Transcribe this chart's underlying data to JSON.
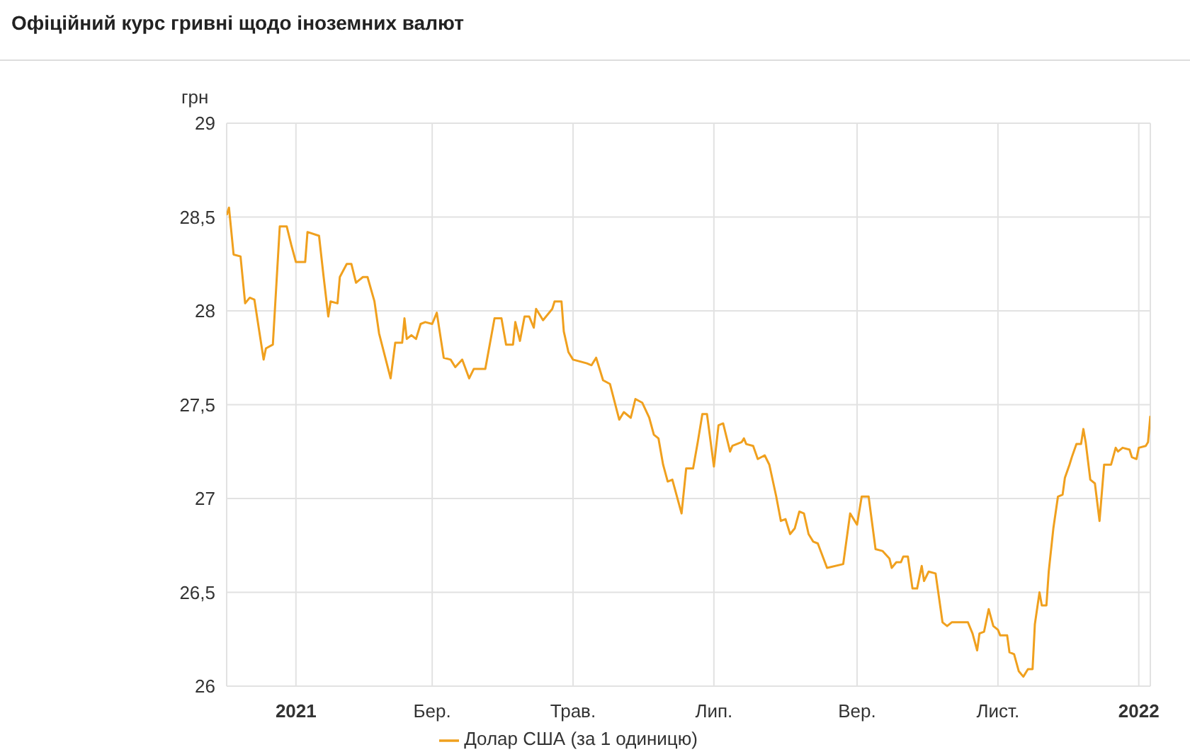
{
  "chart_data": {
    "type": "line",
    "title": "Офіційний курс гривні щодо іноземних валют",
    "ylabel": "грн",
    "x": [
      "2020-12-02",
      "2020-12-03",
      "2020-12-05",
      "2020-12-08",
      "2020-12-10",
      "2020-12-12",
      "2020-12-14",
      "2020-12-18",
      "2020-12-19",
      "2020-12-22",
      "2020-12-25",
      "2020-12-28",
      "2020-12-30",
      "2021-01-01",
      "2021-01-05",
      "2021-01-06",
      "2021-01-11",
      "2021-01-13",
      "2021-01-15",
      "2021-01-16",
      "2021-01-19",
      "2021-01-20",
      "2021-01-23",
      "2021-01-25",
      "2021-01-27",
      "2021-01-30",
      "2021-02-01",
      "2021-02-04",
      "2021-02-06",
      "2021-02-11",
      "2021-02-13",
      "2021-02-16",
      "2021-02-17",
      "2021-02-18",
      "2021-02-20",
      "2021-02-22",
      "2021-02-24",
      "2021-02-26",
      "2021-03-01",
      "2021-03-03",
      "2021-03-06",
      "2021-03-09",
      "2021-03-11",
      "2021-03-14",
      "2021-03-17",
      "2021-03-19",
      "2021-03-24",
      "2021-03-28",
      "2021-03-31",
      "2021-04-02",
      "2021-04-05",
      "2021-04-06",
      "2021-04-08",
      "2021-04-10",
      "2021-04-12",
      "2021-04-14",
      "2021-04-15",
      "2021-04-18",
      "2021-04-22",
      "2021-04-23",
      "2021-04-26",
      "2021-04-27",
      "2021-04-29",
      "2021-05-01",
      "2021-05-07",
      "2021-05-09",
      "2021-05-11",
      "2021-05-14",
      "2021-05-17",
      "2021-05-21",
      "2021-05-23",
      "2021-05-26",
      "2021-05-28",
      "2021-05-31",
      "2021-06-03",
      "2021-06-05",
      "2021-06-07",
      "2021-06-09",
      "2021-06-11",
      "2021-06-13",
      "2021-06-17",
      "2021-06-19",
      "2021-06-22",
      "2021-06-24",
      "2021-06-26",
      "2021-06-28",
      "2021-07-01",
      "2021-07-03",
      "2021-07-05",
      "2021-07-08",
      "2021-07-09",
      "2021-07-13",
      "2021-07-14",
      "2021-07-15",
      "2021-07-18",
      "2021-07-20",
      "2021-07-23",
      "2021-07-25",
      "2021-07-28",
      "2021-07-30",
      "2021-08-01",
      "2021-08-03",
      "2021-08-05",
      "2021-08-07",
      "2021-08-09",
      "2021-08-11",
      "2021-08-13",
      "2021-08-15",
      "2021-08-19",
      "2021-08-26",
      "2021-08-29",
      "2021-09-01",
      "2021-09-03",
      "2021-09-06",
      "2021-09-09",
      "2021-09-12",
      "2021-09-15",
      "2021-09-16",
      "2021-09-18",
      "2021-09-20",
      "2021-09-21",
      "2021-09-23",
      "2021-09-25",
      "2021-09-27",
      "2021-09-29",
      "2021-09-30",
      "2021-10-02",
      "2021-10-05",
      "2021-10-08",
      "2021-10-10",
      "2021-10-12",
      "2021-10-19",
      "2021-10-21",
      "2021-10-23",
      "2021-10-24",
      "2021-10-26",
      "2021-10-28",
      "2021-10-30",
      "2021-11-01",
      "2021-11-02",
      "2021-11-05",
      "2021-11-06",
      "2021-11-08",
      "2021-11-10",
      "2021-11-12",
      "2021-11-14",
      "2021-11-16",
      "2021-11-17",
      "2021-11-19",
      "2021-11-20",
      "2021-11-22",
      "2021-11-23",
      "2021-11-25",
      "2021-11-27",
      "2021-11-29",
      "2021-11-30",
      "2021-12-02",
      "2021-12-03",
      "2021-12-05",
      "2021-12-07",
      "2021-12-08",
      "2021-12-09",
      "2021-12-11",
      "2021-12-13",
      "2021-12-15",
      "2021-12-17",
      "2021-12-20",
      "2021-12-22",
      "2021-12-23",
      "2021-12-25",
      "2021-12-28",
      "2021-12-29",
      "2021-12-31",
      "2022-01-01",
      "2022-01-04",
      "2022-01-05",
      "2022-01-06"
    ],
    "series": [
      {
        "name": "Долар США (за 1 одиницю)",
        "color": "#f0a01e",
        "values": [
          28.51,
          28.55,
          28.3,
          28.29,
          28.04,
          28.07,
          28.06,
          27.74,
          27.8,
          27.82,
          28.45,
          28.45,
          28.35,
          28.26,
          28.26,
          28.42,
          28.4,
          28.18,
          27.97,
          28.05,
          28.04,
          28.18,
          28.25,
          28.25,
          28.15,
          28.18,
          28.18,
          28.05,
          27.88,
          27.64,
          27.83,
          27.83,
          27.96,
          27.85,
          27.87,
          27.85,
          27.93,
          27.94,
          27.93,
          27.99,
          27.75,
          27.74,
          27.7,
          27.74,
          27.64,
          27.69,
          27.69,
          27.96,
          27.96,
          27.82,
          27.82,
          27.94,
          27.84,
          27.97,
          27.97,
          27.91,
          28.01,
          27.95,
          28.01,
          28.05,
          28.05,
          27.89,
          27.78,
          27.74,
          27.72,
          27.71,
          27.75,
          27.63,
          27.61,
          27.42,
          27.46,
          27.43,
          27.53,
          27.51,
          27.43,
          27.34,
          27.32,
          27.18,
          27.09,
          27.1,
          26.92,
          27.16,
          27.16,
          27.3,
          27.45,
          27.45,
          27.17,
          27.39,
          27.4,
          27.25,
          27.28,
          27.3,
          27.32,
          27.29,
          27.28,
          27.21,
          27.23,
          27.18,
          27.01,
          26.88,
          26.89,
          26.81,
          26.84,
          26.93,
          26.92,
          26.81,
          26.77,
          26.76,
          26.63,
          26.65,
          26.92,
          26.86,
          27.01,
          27.01,
          26.73,
          26.72,
          26.68,
          26.63,
          26.66,
          26.66,
          26.69,
          26.69,
          26.52,
          26.52,
          26.64,
          26.56,
          26.61,
          26.6,
          26.34,
          26.32,
          26.34,
          26.34,
          26.28,
          26.19,
          26.28,
          26.29,
          26.41,
          26.32,
          26.3,
          26.27,
          26.27,
          26.18,
          26.17,
          26.08,
          26.05,
          26.09,
          26.09,
          26.33,
          26.5,
          26.43,
          26.43,
          26.61,
          26.84,
          27.01,
          27.02,
          27.11,
          27.18,
          27.22,
          27.29,
          27.29,
          27.37,
          27.3,
          27.1,
          27.08,
          26.88,
          27.18,
          27.18,
          27.27,
          27.25,
          27.27,
          27.26,
          27.22,
          27.21,
          27.27,
          27.28,
          27.3,
          27.44
        ]
      }
    ],
    "xlim": [
      "2020-12-02",
      "2022-01-06"
    ],
    "xticks": [
      {
        "value": "2021-01-01",
        "label": "2021"
      },
      {
        "value": "2021-03-01",
        "label": "Бер."
      },
      {
        "value": "2021-05-01",
        "label": "Трав."
      },
      {
        "value": "2021-07-01",
        "label": "Лип."
      },
      {
        "value": "2021-09-01",
        "label": "Вер."
      },
      {
        "value": "2021-11-01",
        "label": "Лист."
      },
      {
        "value": "2022-01-01",
        "label": "2022"
      }
    ],
    "ylim": [
      26,
      29
    ],
    "yticks": [
      26,
      {
        "value": 26.5,
        "label": "26,5"
      },
      27,
      {
        "value": 27.5,
        "label": "27,5"
      },
      28,
      {
        "value": 28.5,
        "label": "28,5"
      },
      29
    ],
    "grid": true,
    "legend": "bottom",
    "marker": "none",
    "line_style": "solid"
  }
}
